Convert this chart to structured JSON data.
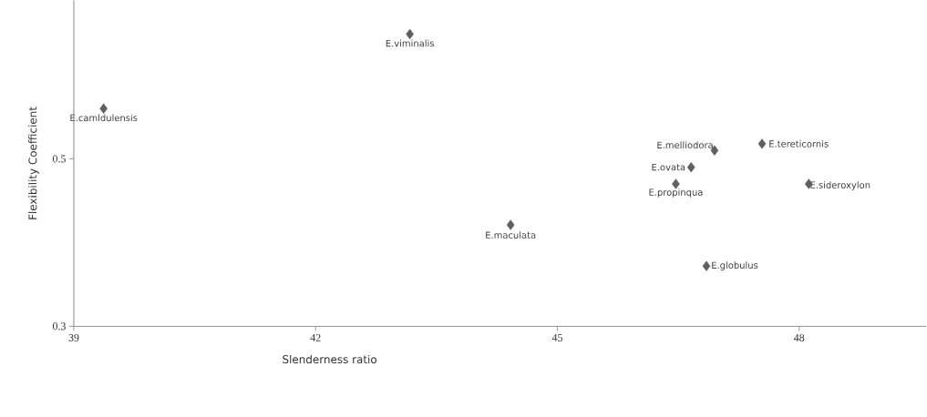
{
  "chart_data": {
    "type": "scatter",
    "xlabel": "Slenderness ratio",
    "ylabel": "Flexibility Coefficient",
    "x": [
      39.37,
      43.17,
      44.42,
      46.95,
      47.54,
      46.66,
      46.47,
      48.12,
      46.85
    ],
    "values": [
      0.56,
      0.649,
      0.421,
      0.51,
      0.518,
      0.49,
      0.47,
      0.47,
      0.372
    ],
    "color": "#5f5f63",
    "marker": "diamond",
    "xlim": [
      39,
      49.58
    ],
    "ylim": [
      0.3,
      0.689
    ],
    "xticks": [
      39,
      42,
      45,
      48
    ],
    "yticks": [
      0.3,
      0.5
    ],
    "annotations": [
      {
        "text": "E.camldulensis",
        "x": 39.37,
        "y": 0.56
      },
      {
        "text": "E.viminalis",
        "x": 43.17,
        "y": 0.649
      },
      {
        "text": "E.maculata",
        "x": 44.42,
        "y": 0.421
      },
      {
        "text": "E.melliodora",
        "x": 46.95,
        "y": 0.51
      },
      {
        "text": "E.tereticornis",
        "x": 47.54,
        "y": 0.518
      },
      {
        "text": "E.ovata",
        "x": 46.66,
        "y": 0.49
      },
      {
        "text": "E.propinqua",
        "x": 46.47,
        "y": 0.47
      },
      {
        "text": "E.sideroxylon",
        "x": 48.12,
        "y": 0.47
      },
      {
        "text": "E.globulus",
        "x": 46.85,
        "y": 0.372
      }
    ]
  }
}
